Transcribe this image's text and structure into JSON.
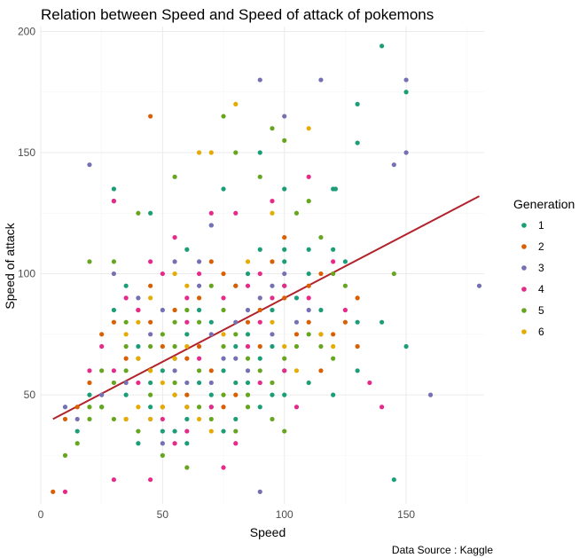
{
  "chart_data": {
    "type": "scatter",
    "title": "Relation between Speed and Speed of attack of pokemons",
    "xlabel": "Speed",
    "ylabel": "Speed of attack",
    "caption": "Data Source : Kaggle",
    "xlim": [
      0,
      182
    ],
    "ylim": [
      5,
      202
    ],
    "x_ticks": [
      0,
      50,
      100,
      150
    ],
    "y_ticks": [
      50,
      100,
      150,
      200
    ],
    "grid": true,
    "legend": {
      "title": "Generation",
      "position": "right"
    },
    "trend_line": {
      "x": [
        5,
        180
      ],
      "y": [
        40,
        132
      ],
      "color": "#b2222a"
    },
    "series": [
      {
        "name": "1",
        "color": "#1b9e77",
        "points": [
          [
            140,
            194
          ],
          [
            150,
            175
          ],
          [
            130,
            170
          ],
          [
            130,
            154
          ],
          [
            100,
            135
          ],
          [
            90,
            150
          ],
          [
            100,
            110
          ],
          [
            110,
            110
          ],
          [
            120,
            135
          ],
          [
            121,
            135
          ],
          [
            75,
            135
          ],
          [
            70,
            120
          ],
          [
            30,
            135
          ],
          [
            30,
            130
          ],
          [
            45,
            125
          ],
          [
            60,
            110
          ],
          [
            80,
            95
          ],
          [
            85,
            100
          ],
          [
            90,
            110
          ],
          [
            95,
            85
          ],
          [
            100,
            95
          ],
          [
            105,
            90
          ],
          [
            110,
            100
          ],
          [
            115,
            85
          ],
          [
            120,
            110
          ],
          [
            125,
            105
          ],
          [
            130,
            80
          ],
          [
            140,
            80
          ],
          [
            150,
            70
          ],
          [
            145,
            15
          ],
          [
            130,
            60
          ],
          [
            120,
            50
          ],
          [
            110,
            55
          ],
          [
            100,
            60
          ],
          [
            95,
            50
          ],
          [
            90,
            65
          ],
          [
            85,
            55
          ],
          [
            80,
            70
          ],
          [
            75,
            35
          ],
          [
            70,
            45
          ],
          [
            65,
            55
          ],
          [
            60,
            40
          ],
          [
            55,
            50
          ],
          [
            50,
            60
          ],
          [
            45,
            45
          ],
          [
            40,
            70
          ],
          [
            35,
            50
          ],
          [
            30,
            85
          ],
          [
            25,
            45
          ],
          [
            20,
            50
          ],
          [
            15,
            35
          ],
          [
            40,
            30
          ],
          [
            50,
            35
          ],
          [
            60,
            30
          ],
          [
            70,
            50
          ],
          [
            80,
            40
          ],
          [
            90,
            45
          ],
          [
            100,
            50
          ],
          [
            60,
            75
          ],
          [
            70,
            80
          ],
          [
            75,
            60
          ],
          [
            85,
            75
          ],
          [
            55,
            65
          ],
          [
            65,
            85
          ],
          [
            95,
            70
          ],
          [
            100,
            105
          ],
          [
            80,
            55
          ],
          [
            35,
            95
          ],
          [
            45,
            55
          ],
          [
            55,
            35
          ]
        ]
      },
      {
        "name": "2",
        "color": "#d95f02",
        "points": [
          [
            45,
            165
          ],
          [
            5,
            10
          ],
          [
            115,
            100
          ],
          [
            130,
            90
          ],
          [
            130,
            70
          ],
          [
            120,
            75
          ],
          [
            110,
            80
          ],
          [
            100,
            90
          ],
          [
            90,
            70
          ],
          [
            85,
            80
          ],
          [
            80,
            95
          ],
          [
            75,
            100
          ],
          [
            70,
            105
          ],
          [
            65,
            90
          ],
          [
            60,
            65
          ],
          [
            55,
            85
          ],
          [
            50,
            70
          ],
          [
            45,
            95
          ],
          [
            40,
            85
          ],
          [
            35,
            65
          ],
          [
            30,
            80
          ],
          [
            25,
            75
          ],
          [
            20,
            55
          ],
          [
            15,
            45
          ],
          [
            10,
            40
          ],
          [
            50,
            45
          ],
          [
            60,
            50
          ],
          [
            70,
            60
          ],
          [
            80,
            50
          ],
          [
            90,
            85
          ],
          [
            95,
            105
          ],
          [
            100,
            115
          ],
          [
            110,
            95
          ],
          [
            115,
            60
          ],
          [
            125,
            80
          ],
          [
            105,
            75
          ],
          [
            45,
            80
          ],
          [
            35,
            40
          ],
          [
            65,
            70
          ],
          [
            75,
            45
          ]
        ]
      },
      {
        "name": "3",
        "color": "#7570b3",
        "points": [
          [
            20,
            145
          ],
          [
            90,
            180
          ],
          [
            115,
            180
          ],
          [
            150,
            180
          ],
          [
            100,
            165
          ],
          [
            180,
            95
          ],
          [
            145,
            145
          ],
          [
            150,
            150
          ],
          [
            160,
            50
          ],
          [
            70,
            120
          ],
          [
            65,
            105
          ],
          [
            55,
            105
          ],
          [
            30,
            100
          ],
          [
            40,
            90
          ],
          [
            45,
            75
          ],
          [
            50,
            85
          ],
          [
            55,
            60
          ],
          [
            60,
            55
          ],
          [
            70,
            75
          ],
          [
            75,
            65
          ],
          [
            80,
            80
          ],
          [
            85,
            85
          ],
          [
            90,
            90
          ],
          [
            95,
            95
          ],
          [
            100,
            100
          ],
          [
            105,
            80
          ],
          [
            110,
            85
          ],
          [
            115,
            75
          ],
          [
            10,
            45
          ],
          [
            15,
            40
          ],
          [
            25,
            50
          ],
          [
            35,
            55
          ],
          [
            45,
            40
          ],
          [
            50,
            30
          ],
          [
            60,
            45
          ],
          [
            70,
            55
          ],
          [
            80,
            65
          ],
          [
            85,
            60
          ],
          [
            95,
            75
          ],
          [
            65,
            95
          ],
          [
            90,
            10
          ]
        ]
      },
      {
        "name": "4",
        "color": "#e7298a",
        "points": [
          [
            10,
            10
          ],
          [
            30,
            130
          ],
          [
            40,
            85
          ],
          [
            50,
            100
          ],
          [
            60,
            90
          ],
          [
            65,
            100
          ],
          [
            75,
            90
          ],
          [
            85,
            95
          ],
          [
            90,
            100
          ],
          [
            95,
            90
          ],
          [
            100,
            95
          ],
          [
            110,
            90
          ],
          [
            110,
            140
          ],
          [
            95,
            130
          ],
          [
            80,
            125
          ],
          [
            70,
            125
          ],
          [
            55,
            115
          ],
          [
            45,
            105
          ],
          [
            35,
            90
          ],
          [
            25,
            70
          ],
          [
            20,
            60
          ],
          [
            30,
            60
          ],
          [
            40,
            55
          ],
          [
            50,
            40
          ],
          [
            60,
            35
          ],
          [
            70,
            45
          ],
          [
            80,
            30
          ],
          [
            90,
            55
          ],
          [
            100,
            60
          ],
          [
            105,
            45
          ],
          [
            120,
            105
          ],
          [
            125,
            85
          ],
          [
            135,
            55
          ],
          [
            140,
            45
          ],
          [
            75,
            20
          ],
          [
            30,
            15
          ],
          [
            45,
            15
          ],
          [
            55,
            30
          ],
          [
            65,
            65
          ],
          [
            85,
            70
          ],
          [
            60,
            80
          ],
          [
            90,
            80
          ]
        ]
      },
      {
        "name": "5",
        "color": "#66a61e",
        "points": [
          [
            20,
            105
          ],
          [
            30,
            105
          ],
          [
            40,
            125
          ],
          [
            55,
            140
          ],
          [
            75,
            165
          ],
          [
            80,
            150
          ],
          [
            90,
            140
          ],
          [
            95,
            160
          ],
          [
            100,
            155
          ],
          [
            105,
            125
          ],
          [
            110,
            130
          ],
          [
            115,
            115
          ],
          [
            120,
            100
          ],
          [
            125,
            95
          ],
          [
            145,
            100
          ],
          [
            10,
            25
          ],
          [
            15,
            30
          ],
          [
            20,
            40
          ],
          [
            25,
            45
          ],
          [
            30,
            55
          ],
          [
            35,
            60
          ],
          [
            40,
            65
          ],
          [
            45,
            70
          ],
          [
            50,
            75
          ],
          [
            55,
            80
          ],
          [
            60,
            85
          ],
          [
            65,
            80
          ],
          [
            70,
            95
          ],
          [
            75,
            85
          ],
          [
            80,
            75
          ],
          [
            85,
            65
          ],
          [
            90,
            60
          ],
          [
            95,
            55
          ],
          [
            100,
            65
          ],
          [
            105,
            70
          ],
          [
            110,
            75
          ],
          [
            115,
            70
          ],
          [
            120,
            65
          ],
          [
            35,
            70
          ],
          [
            45,
            50
          ],
          [
            55,
            55
          ],
          [
            65,
            45
          ],
          [
            75,
            50
          ],
          [
            85,
            50
          ],
          [
            95,
            40
          ],
          [
            100,
            35
          ],
          [
            80,
            35
          ],
          [
            70,
            40
          ],
          [
            60,
            20
          ],
          [
            50,
            25
          ],
          [
            40,
            35
          ],
          [
            30,
            40
          ],
          [
            20,
            45
          ],
          [
            25,
            60
          ],
          [
            35,
            80
          ],
          [
            45,
            60
          ],
          [
            55,
            70
          ],
          [
            65,
            60
          ],
          [
            75,
            70
          ],
          [
            85,
            45
          ]
        ]
      },
      {
        "name": "6",
        "color": "#e6ab02",
        "points": [
          [
            65,
            150
          ],
          [
            70,
            150
          ],
          [
            80,
            170
          ],
          [
            110,
            160
          ],
          [
            95,
            125
          ],
          [
            60,
            95
          ],
          [
            55,
            100
          ],
          [
            45,
            90
          ],
          [
            40,
            80
          ],
          [
            35,
            75
          ],
          [
            40,
            65
          ],
          [
            45,
            60
          ],
          [
            50,
            55
          ],
          [
            55,
            50
          ],
          [
            60,
            45
          ],
          [
            65,
            40
          ],
          [
            70,
            35
          ],
          [
            50,
            45
          ],
          [
            45,
            40
          ],
          [
            40,
            45
          ],
          [
            35,
            40
          ],
          [
            75,
            75
          ],
          [
            85,
            105
          ],
          [
            95,
            80
          ],
          [
            100,
            70
          ],
          [
            105,
            60
          ],
          [
            115,
            75
          ],
          [
            120,
            70
          ],
          [
            55,
            65
          ],
          [
            60,
            70
          ]
        ]
      }
    ]
  }
}
